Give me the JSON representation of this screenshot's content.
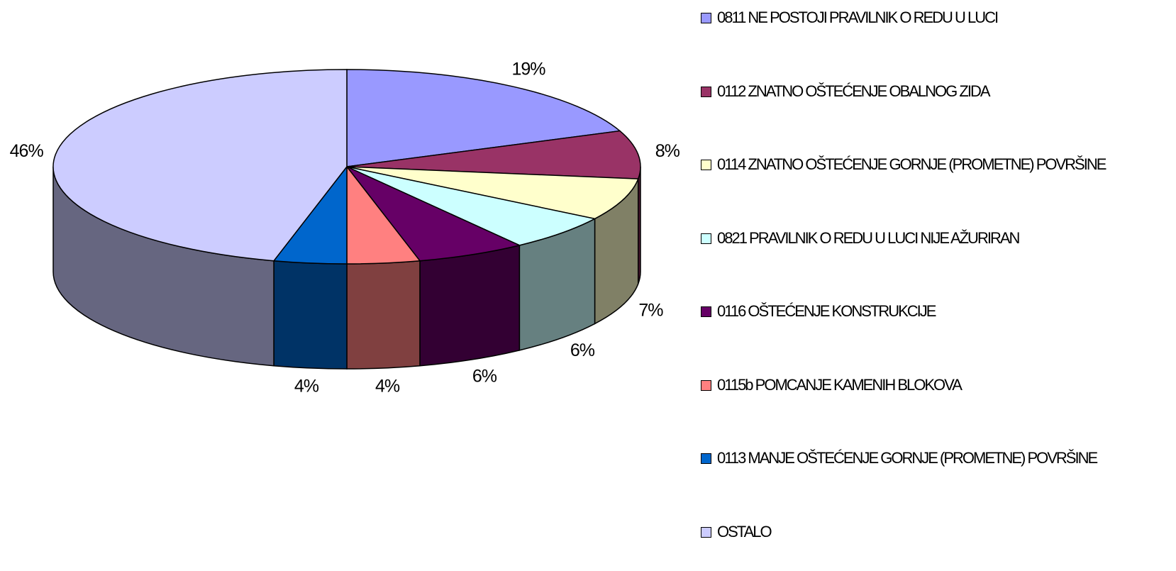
{
  "chart_data": {
    "type": "pie",
    "categories": [
      "0811 NE POSTOJI PRAVILNIK O REDU U LUCI",
      "0112 ZNATNO OŠTEĆENJE OBALNOG ZIDA",
      "0114 ZNATNO OŠTEĆENJE GORNJE (PROMETNE) POVRŠINE",
      "0821 PRAVILNIK O REDU U LUCI NIJE AŽURIRAN",
      "0116 OŠTEĆENJE KONSTRUKCIJE",
      "0115b POMCANJE KAMENIH BLOKOVA",
      "0113 MANJE OŠTEĆENJE GORNJE (PROMETNE) POVRŠINE",
      "OSTALO"
    ],
    "values": [
      19,
      8,
      7,
      6,
      6,
      4,
      4,
      46
    ],
    "value_labels": [
      "19%",
      "8%",
      "7%",
      "6%",
      "6%",
      "4%",
      "4%",
      "46%"
    ],
    "colors": [
      "#9999ff",
      "#993366",
      "#ffffcc",
      "#ccffff",
      "#660066",
      "#ff8080",
      "#0066cc",
      "#ccccff"
    ],
    "legend": "right"
  }
}
